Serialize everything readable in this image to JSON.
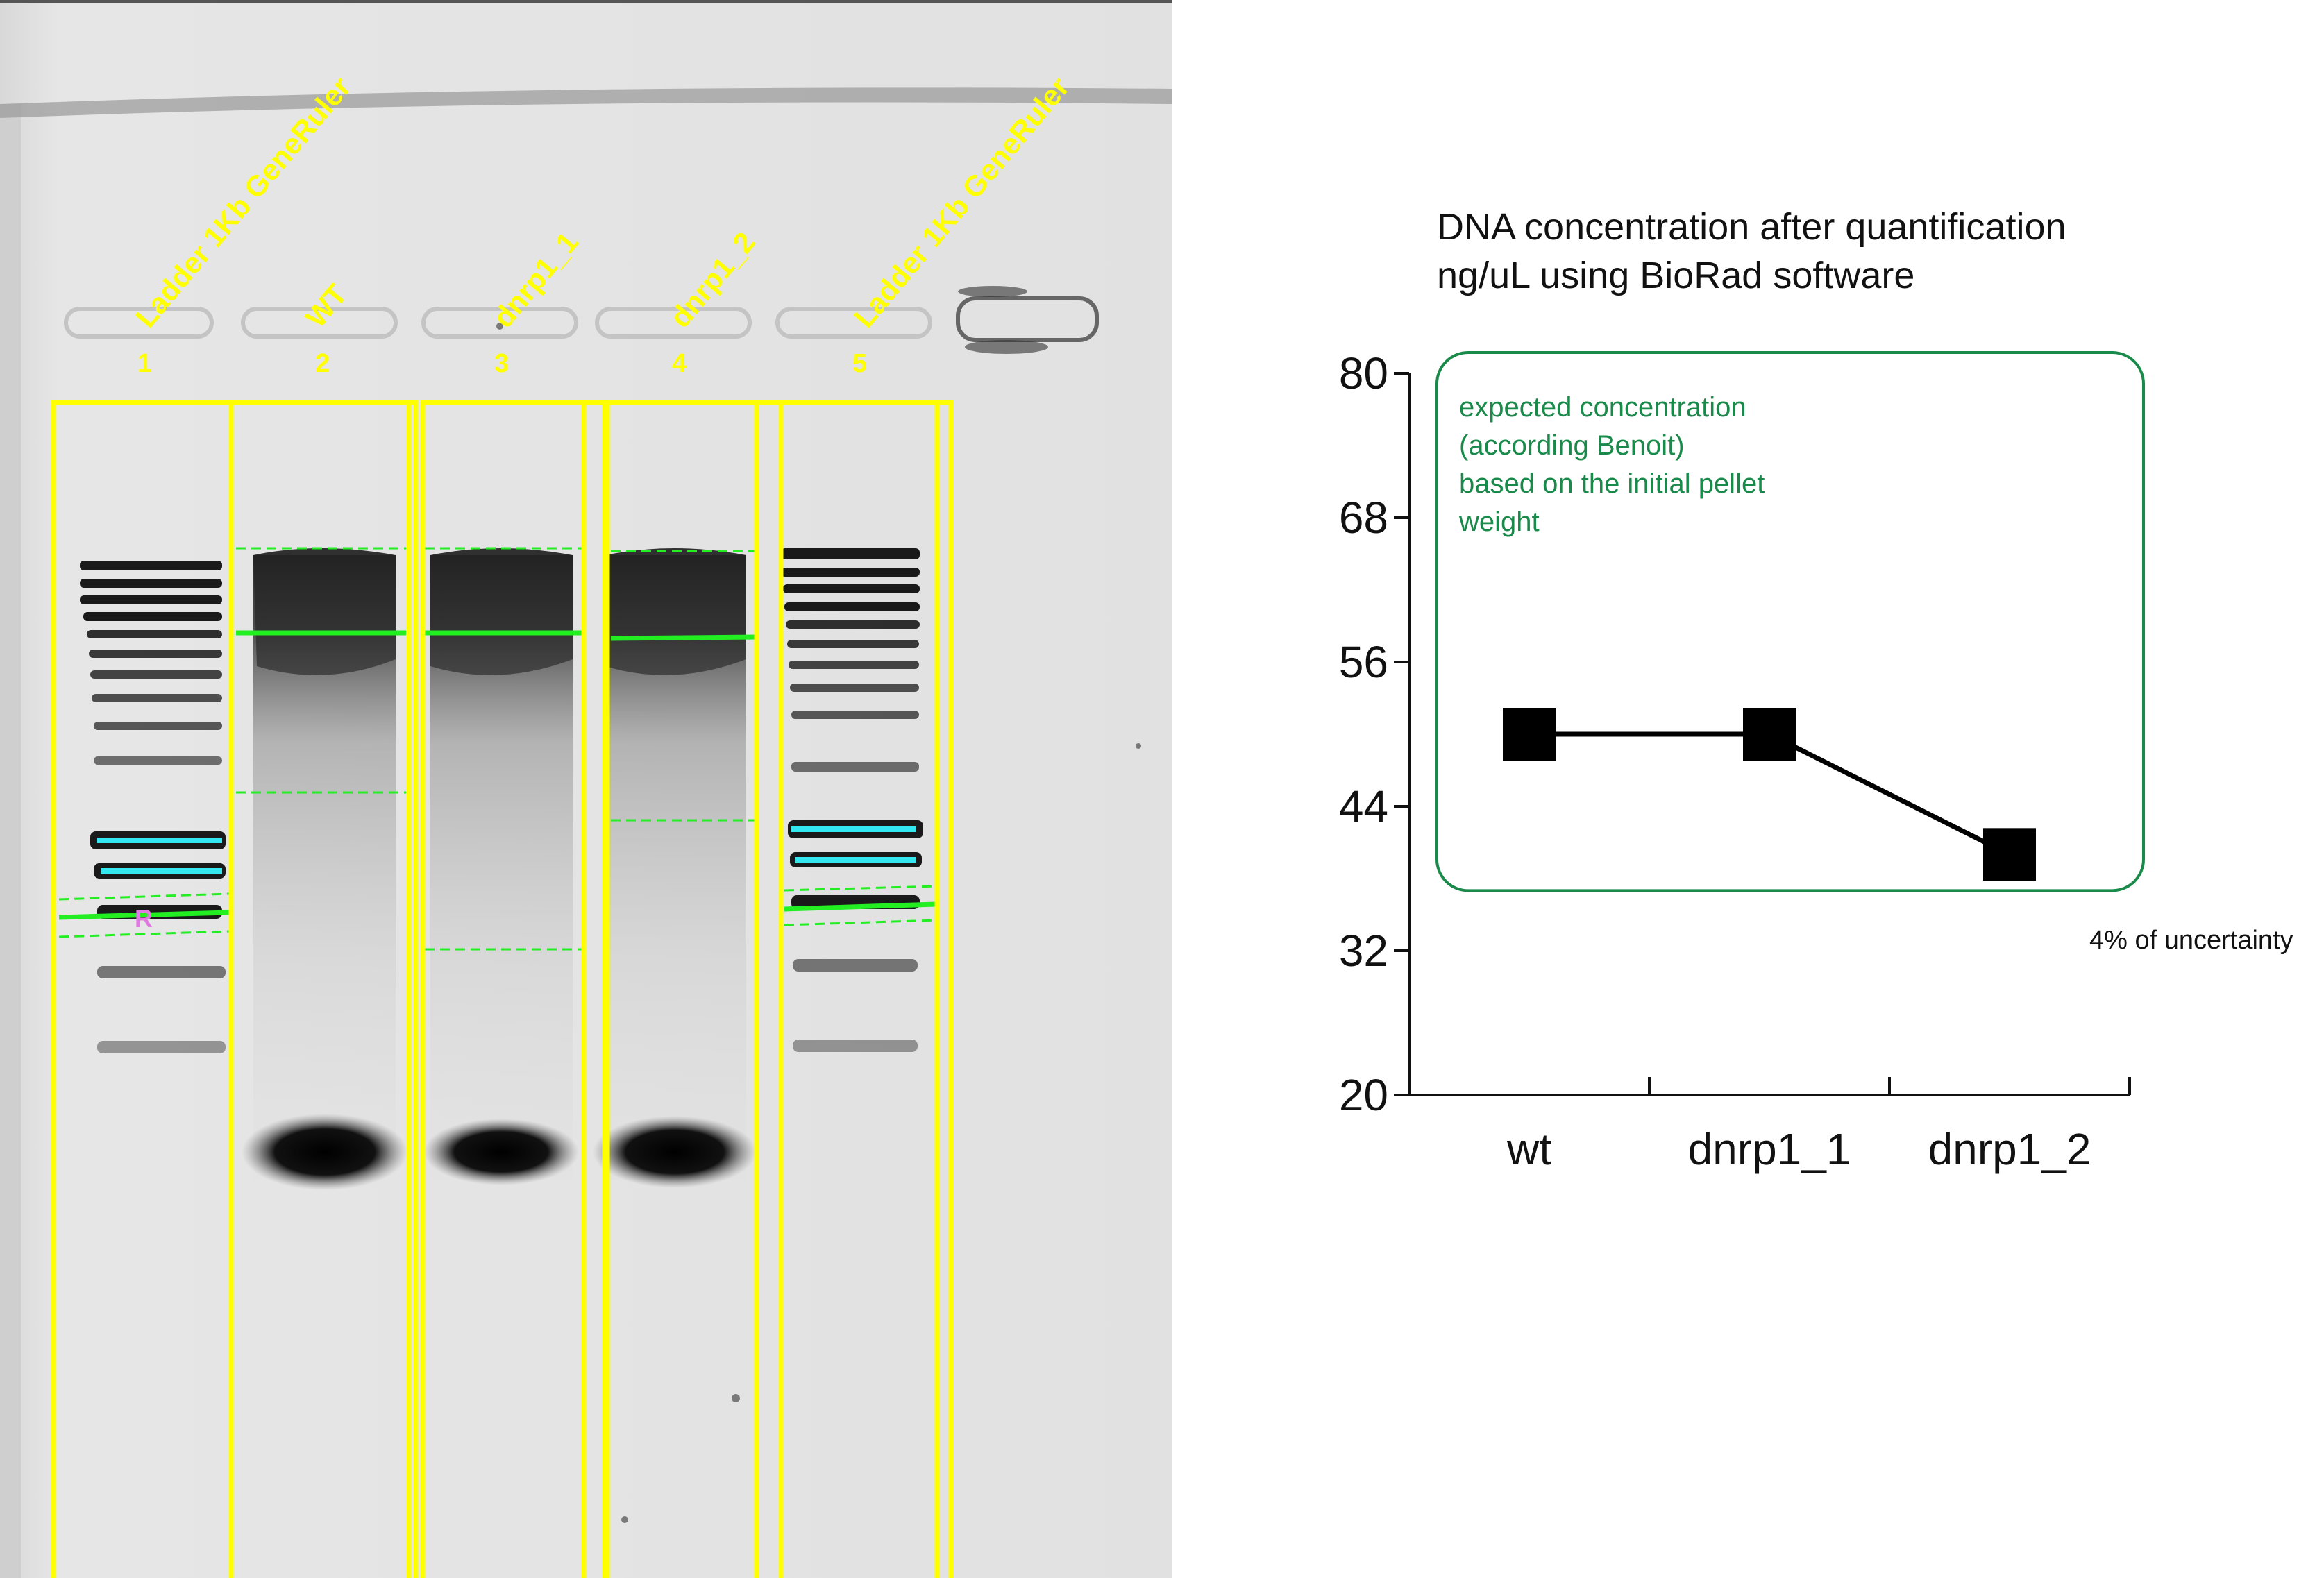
{
  "gel": {
    "lanes": [
      {
        "number": "1",
        "label": "Ladder 1Kb GeneRuler",
        "kind": "ladder"
      },
      {
        "number": "2",
        "label": "WT",
        "kind": "sample"
      },
      {
        "number": "3",
        "label": "dnrp1_1",
        "kind": "sample"
      },
      {
        "number": "4",
        "label": "dnrp1_2",
        "kind": "sample"
      },
      {
        "number": "5",
        "label": "Ladder 1Kb GeneRuler",
        "kind": "ladder"
      }
    ],
    "reference_marker": "R",
    "colors": {
      "lane_box": "#ffff00",
      "band_line": "#22ee22",
      "highlight": "#33e6f0",
      "marker": "#e07ae0",
      "gel_background": "#e3e3e3"
    }
  },
  "chart_data": {
    "type": "line",
    "title": "DNA concentration after quantification",
    "subtitle": "ng/uL using BioRad software",
    "categories": [
      "wt",
      "dnrp1_1",
      "dnrp1_2"
    ],
    "series": [
      {
        "values": [
          50,
          50,
          40
        ]
      }
    ],
    "ylim": [
      20,
      80
    ],
    "yticks": [
      20,
      32,
      44,
      56,
      68,
      80
    ],
    "xlabel": "",
    "ylabel": "",
    "annotation": {
      "lines": [
        "expected concentration",
        "(according Benoit)",
        "based on the initial pellet",
        "weight"
      ],
      "range": [
        37,
        80
      ],
      "color": "#1a8a4a"
    },
    "note": "4% of uncertainty",
    "grid": false
  }
}
